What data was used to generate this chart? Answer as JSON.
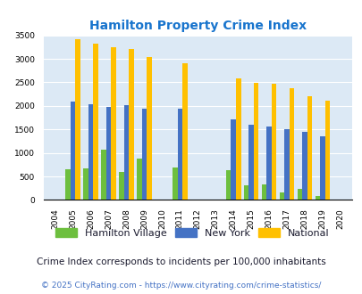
{
  "title": "Hamilton Property Crime Index",
  "years": [
    2004,
    2005,
    2006,
    2007,
    2008,
    2009,
    2010,
    2011,
    2012,
    2013,
    2014,
    2015,
    2016,
    2017,
    2018,
    2019,
    2020
  ],
  "hamilton": [
    0,
    650,
    670,
    1060,
    590,
    870,
    0,
    690,
    0,
    0,
    640,
    310,
    330,
    150,
    240,
    80,
    0
  ],
  "new_york": [
    0,
    2090,
    2040,
    1980,
    2010,
    1940,
    0,
    1930,
    0,
    0,
    1710,
    1600,
    1555,
    1510,
    1450,
    1360,
    0
  ],
  "national": [
    0,
    3410,
    3330,
    3250,
    3210,
    3040,
    0,
    2900,
    0,
    0,
    2590,
    2490,
    2470,
    2380,
    2200,
    2110,
    0
  ],
  "hamilton_color": "#6dbf3e",
  "newyork_color": "#4472c4",
  "national_color": "#ffc000",
  "bg_color": "#dce9f5",
  "title_color": "#1874CD",
  "ylabel_max": 3500,
  "yticks": [
    0,
    500,
    1000,
    1500,
    2000,
    2500,
    3000,
    3500
  ],
  "legend_labels": [
    "Hamilton Village",
    "New York",
    "National"
  ],
  "note": "Crime Index corresponds to incidents per 100,000 inhabitants",
  "footer": "© 2025 CityRating.com - https://www.cityrating.com/crime-statistics/",
  "note_color": "#1a1a2e",
  "footer_color": "#4472c4"
}
